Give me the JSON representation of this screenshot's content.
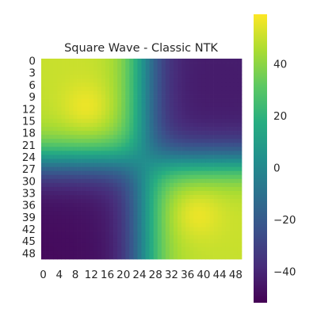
{
  "chart_data": {
    "type": "heatmap",
    "title": "Square Wave - Classic NTK",
    "xlabel": "",
    "ylabel": "",
    "n_rows": 50,
    "n_cols": 50,
    "x_tick_labels": [
      "0",
      "4",
      "8",
      "12",
      "16",
      "20",
      "24",
      "28",
      "32",
      "36",
      "40",
      "44",
      "48"
    ],
    "y_tick_labels": [
      "0",
      "3",
      "6",
      "9",
      "12",
      "15",
      "18",
      "21",
      "24",
      "27",
      "30",
      "33",
      "36",
      "39",
      "42",
      "45",
      "48"
    ],
    "colorbar": {
      "colormap": "viridis",
      "vmin": -52,
      "vmax": 59,
      "tick_values": [
        -40,
        -20,
        0,
        20,
        40
      ],
      "tick_labels": [
        "−40",
        "−20",
        "0",
        "20",
        "40"
      ]
    },
    "matrix_description": {
      "structure": "2x2 block: positive in top-left and bottom-right, negative in top-right and bottom-left, zero crossing near index 25",
      "peak_positive": [
        {
          "row": 12,
          "col": 11,
          "value": 58
        },
        {
          "row": 38,
          "col": 38,
          "value": 58
        }
      ],
      "corner_values": {
        "top_left": 55,
        "top_right": -48,
        "bottom_left": -52,
        "bottom_right": 55
      }
    },
    "grid": false,
    "legend": "colorbar-right"
  }
}
